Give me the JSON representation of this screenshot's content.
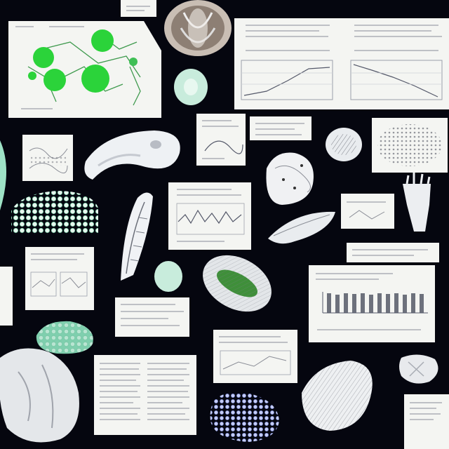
{
  "scene": {
    "description_colors": {
      "background": "#05060f",
      "paper": "#f4f5f2",
      "mint": "#c8ecdc",
      "green": "#2bd33a",
      "lavender": "#9aa6e6"
    }
  }
}
